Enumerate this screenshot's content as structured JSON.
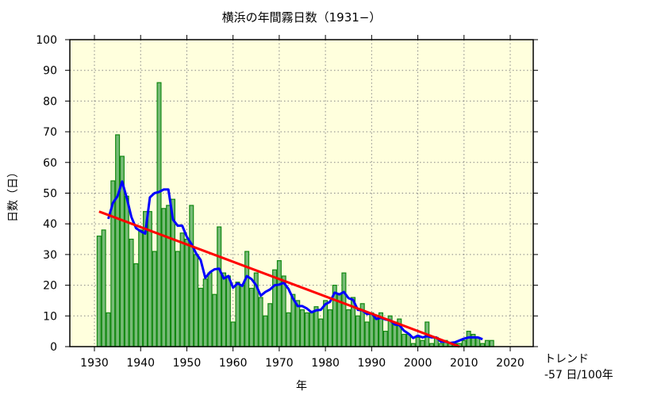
{
  "chart_data": {
    "type": "bar",
    "title": "横浜の年間霧日数（1931−）",
    "xlabel": "年",
    "ylabel": "日数（日）",
    "xlim": [
      1925,
      2029
    ],
    "ylim": [
      0,
      100
    ],
    "xticks": [
      1930,
      1940,
      1950,
      1960,
      1970,
      1980,
      1990,
      2000,
      2010,
      2020
    ],
    "yticks": [
      0,
      10,
      20,
      30,
      40,
      50,
      60,
      70,
      80,
      90,
      100
    ],
    "grid": true,
    "x": [
      1931,
      1932,
      1933,
      1934,
      1935,
      1936,
      1937,
      1938,
      1939,
      1940,
      1941,
      1942,
      1943,
      1944,
      1945,
      1946,
      1947,
      1948,
      1949,
      1950,
      1951,
      1952,
      1953,
      1954,
      1955,
      1956,
      1957,
      1958,
      1959,
      1960,
      1961,
      1962,
      1963,
      1964,
      1965,
      1966,
      1967,
      1968,
      1969,
      1970,
      1971,
      1972,
      1973,
      1974,
      1975,
      1976,
      1977,
      1978,
      1979,
      1980,
      1981,
      1982,
      1983,
      1984,
      1985,
      1986,
      1987,
      1988,
      1989,
      1990,
      1991,
      1992,
      1993,
      1994,
      1995,
      1996,
      1997,
      1998,
      1999,
      2000,
      2001,
      2002,
      2003,
      2004,
      2005,
      2006,
      2007,
      2008,
      2009,
      2010,
      2011,
      2012,
      2013,
      2014,
      2015,
      2016
    ],
    "values": [
      36,
      38,
      11,
      54,
      69,
      62,
      49,
      35,
      27,
      38,
      44,
      44,
      31,
      86,
      45,
      46,
      48,
      31,
      37,
      35,
      46,
      30,
      19,
      22,
      24,
      17,
      39,
      24,
      23,
      8,
      21,
      20,
      31,
      19,
      24,
      16,
      10,
      14,
      25,
      28,
      23,
      11,
      17,
      15,
      12,
      11,
      11,
      13,
      9,
      15,
      12,
      20,
      17,
      24,
      12,
      16,
      10,
      14,
      8,
      11,
      10,
      11,
      5,
      10,
      8,
      9,
      4,
      4,
      1,
      3,
      2,
      8,
      1,
      3,
      1,
      2,
      1,
      1,
      1,
      2,
      5,
      4,
      3,
      1,
      2,
      2
    ],
    "moving_average_window": 5,
    "trend": {
      "label": "トレンド",
      "value_text": "-57 日/100年",
      "start": [
        1931,
        44
      ],
      "end": [
        2009,
        0
      ]
    },
    "colors": {
      "background": "#ffffdd",
      "bar_fill": "#77bb77",
      "bar_edge": "#118811",
      "moving_average": "#0000ff",
      "trend": "#ff0000",
      "grid": "#888888"
    }
  }
}
